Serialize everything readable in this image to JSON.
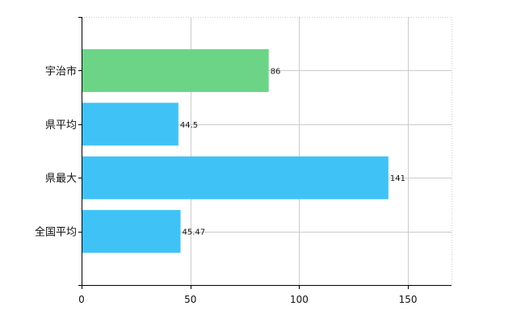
{
  "chart_data": {
    "type": "bar",
    "orientation": "horizontal",
    "categories": [
      "宇治市",
      "県平均",
      "県最大",
      "全国平均"
    ],
    "values": [
      86,
      44.5,
      141,
      45.47
    ],
    "value_labels": [
      "86",
      "44.5",
      "141",
      "45.47"
    ],
    "bar_colors": [
      "#6cd487",
      "#3fc3f7",
      "#3fc3f7",
      "#3fc3f7"
    ],
    "xlim": [
      0,
      170
    ],
    "xticks": [
      0,
      50,
      100,
      150
    ],
    "xtick_labels": [
      "0",
      "50",
      "100",
      "150"
    ],
    "grid": true,
    "grid_color": "#cccccc",
    "title": "",
    "xlabel": "",
    "ylabel": ""
  }
}
